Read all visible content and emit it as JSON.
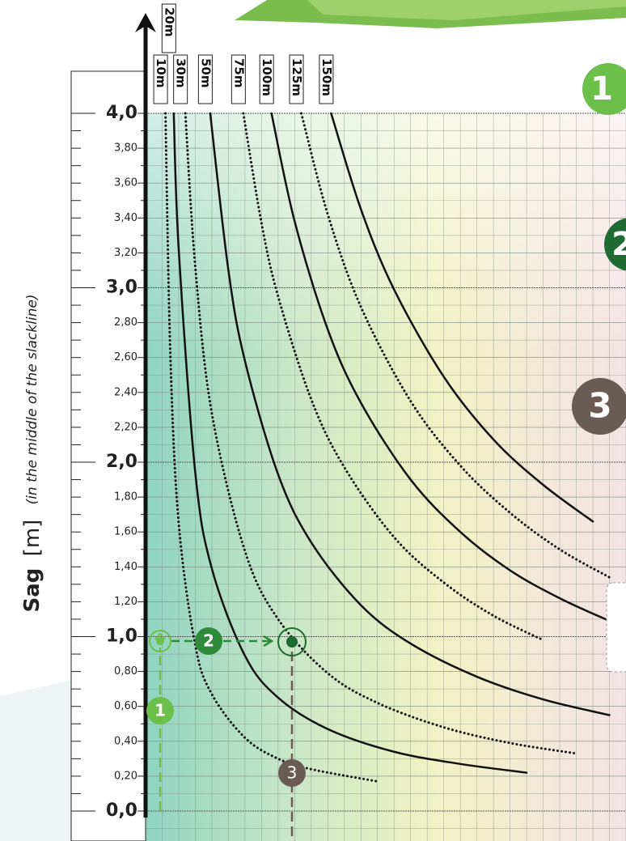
{
  "chart_data": {
    "type": "line",
    "y_label": {
      "main": "Sag",
      "unit": "[m]",
      "note": "(in the middle of the slackline)"
    },
    "ylim": [
      0,
      4
    ],
    "xlim": [
      0,
      29
    ],
    "yticks": [
      {
        "value": 0,
        "label": "0,0"
      },
      {
        "value": 0.2,
        "label": "0,20"
      },
      {
        "value": 0.4,
        "label": "0,40"
      },
      {
        "value": 0.6,
        "label": "0,60"
      },
      {
        "value": 0.8,
        "label": "0,80"
      },
      {
        "value": 1,
        "label": "1,0"
      },
      {
        "value": 1.2,
        "label": "1,20"
      },
      {
        "value": 1.4,
        "label": "1,40"
      },
      {
        "value": 1.6,
        "label": "1,60"
      },
      {
        "value": 1.8,
        "label": "1,80"
      },
      {
        "value": 2,
        "label": "2,0"
      },
      {
        "value": 2.2,
        "label": "2,20"
      },
      {
        "value": 2.4,
        "label": "2,40"
      },
      {
        "value": 2.6,
        "label": "2,60"
      },
      {
        "value": 2.8,
        "label": "2,80"
      },
      {
        "value": 3,
        "label": "3,0"
      },
      {
        "value": 3.2,
        "label": "3,20"
      },
      {
        "value": 3.4,
        "label": "3,40"
      },
      {
        "value": 3.6,
        "label": "3,60"
      },
      {
        "value": 3.8,
        "label": "3,80"
      },
      {
        "value": 4,
        "label": "4,0"
      }
    ],
    "grid": true,
    "series": [
      {
        "name": "10m",
        "color": "#111111",
        "style": "dotted",
        "x": [
          1.2,
          1.5,
          2,
          3,
          4,
          6,
          8,
          10,
          14
        ],
        "values": [
          4.0,
          2.6,
          1.65,
          0.95,
          0.67,
          0.42,
          0.3,
          0.24,
          0.17
        ]
      },
      {
        "name": "20m",
        "color": "#111111",
        "style": "solid",
        "x": [
          1.7,
          2,
          3,
          4,
          6,
          8,
          11,
          15,
          19,
          23
        ],
        "values": [
          4.0,
          3.22,
          1.94,
          1.39,
          0.89,
          0.65,
          0.47,
          0.34,
          0.27,
          0.22
        ]
      },
      {
        "name": "30m",
        "color": "#111111",
        "style": "dotted",
        "x": [
          2.4,
          3,
          4,
          6,
          8,
          11,
          14,
          18,
          22,
          26
        ],
        "values": [
          4.0,
          3.12,
          2.28,
          1.49,
          1.1,
          0.79,
          0.62,
          0.48,
          0.39,
          0.33
        ]
      },
      {
        "name": "50m",
        "color": "#111111",
        "style": "solid",
        "x": [
          3.9,
          5,
          6,
          8,
          10,
          13,
          16,
          20,
          24,
          28
        ],
        "values": [
          4.0,
          3.1,
          2.58,
          1.93,
          1.54,
          1.18,
          0.96,
          0.77,
          0.64,
          0.55
        ]
      },
      {
        "name": "75m",
        "color": "#111111",
        "style": "dotted",
        "x": [
          5.9,
          7,
          8,
          10,
          12,
          15,
          18,
          21,
          24
        ],
        "values": [
          4.0,
          3.37,
          2.95,
          2.36,
          1.97,
          1.57,
          1.31,
          1.12,
          0.98
        ]
      },
      {
        "name": "100m",
        "color": "#111111",
        "style": "solid",
        "x": [
          7.6,
          9,
          11,
          13,
          16,
          19,
          22,
          25,
          28
        ],
        "values": [
          4.0,
          3.38,
          2.76,
          2.34,
          1.9,
          1.6,
          1.38,
          1.22,
          1.09
        ]
      },
      {
        "name": "125m",
        "color": "#111111",
        "style": "dotted",
        "x": [
          9.4,
          11,
          13,
          16,
          19,
          22,
          25,
          28
        ],
        "values": [
          4.0,
          3.42,
          2.89,
          2.35,
          1.98,
          1.71,
          1.5,
          1.34
        ]
      },
      {
        "name": "150m",
        "color": "#111111",
        "style": "solid",
        "x": [
          11.2,
          13,
          15,
          18,
          21,
          24,
          27
        ],
        "values": [
          4.0,
          3.45,
          2.99,
          2.49,
          2.13,
          1.87,
          1.66
        ]
      }
    ],
    "steps": [
      "1",
      "2",
      "3"
    ],
    "side_steps": [
      "1",
      "2",
      "3"
    ]
  }
}
